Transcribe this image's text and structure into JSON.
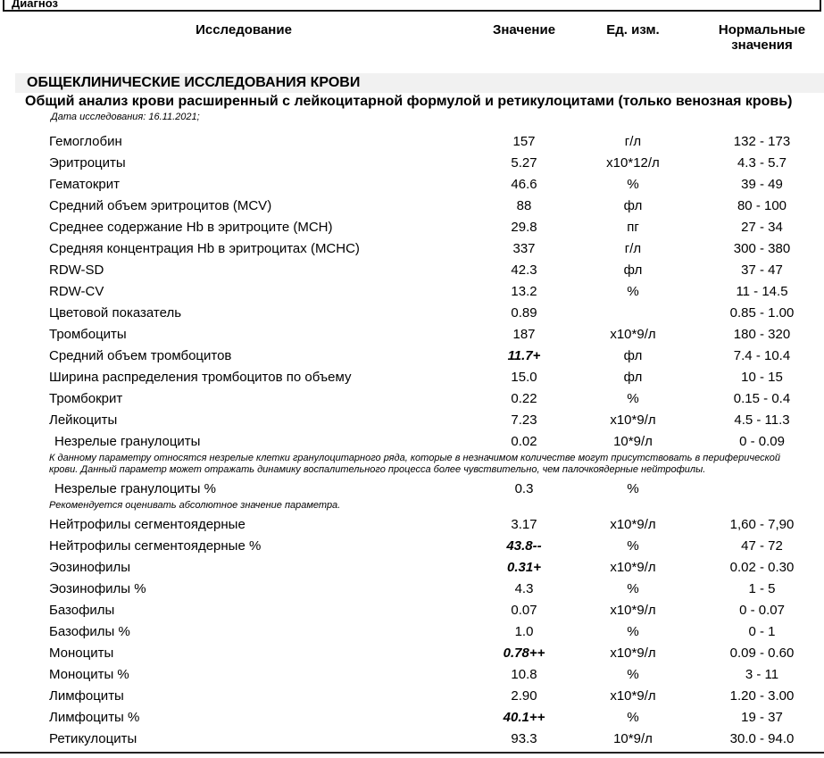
{
  "colors": {
    "section_header_bg": "#f1f1f1",
    "text": "#000000"
  },
  "document": {
    "diagnosis_box_label": "Диагноз",
    "columns": {
      "test": "Исследование",
      "value": "Значение",
      "unit": "Ед. изм.",
      "normal_line1": "Нормальные",
      "normal_line2": "значения"
    },
    "section_title": "ОБЩЕКЛИНИЧЕСКИЕ ИССЛЕДОВАНИЯ КРОВИ",
    "panel_title": "Общий анализ крови расширенный с лейкоцитарной формулой и ретикулоцитами (только венозная кровь)",
    "panel_date": "Дата исследования: 16.11.2021;",
    "rows": [
      {
        "type": "test",
        "name": "Гемоглобин",
        "value": "157",
        "unit": "г/л",
        "normal": "132 - 173",
        "flagged": false,
        "indent": false
      },
      {
        "type": "test",
        "name": "Эритроциты",
        "value": "5.27",
        "unit": "х10*12/л",
        "normal": "4.3 - 5.7",
        "flagged": false,
        "indent": false
      },
      {
        "type": "test",
        "name": "Гематокрит",
        "value": "46.6",
        "unit": "%",
        "normal": "39 - 49",
        "flagged": false,
        "indent": false
      },
      {
        "type": "test",
        "name": "Средний объем эритроцитов (MCV)",
        "value": "88",
        "unit": "фл",
        "normal": "80 - 100",
        "flagged": false,
        "indent": false
      },
      {
        "type": "test",
        "name": "Среднее содержание Hb в эритроците (MCH)",
        "value": "29.8",
        "unit": "пг",
        "normal": "27 - 34",
        "flagged": false,
        "indent": false
      },
      {
        "type": "test",
        "name": "Средняя концентрация Hb в эритроцитах (MCHC)",
        "value": "337",
        "unit": "г/л",
        "normal": "300 - 380",
        "flagged": false,
        "indent": false
      },
      {
        "type": "test",
        "name": "RDW-SD",
        "value": "42.3",
        "unit": "фл",
        "normal": "37 - 47",
        "flagged": false,
        "indent": false
      },
      {
        "type": "test",
        "name": "RDW-CV",
        "value": "13.2",
        "unit": "%",
        "normal": "11 - 14.5",
        "flagged": false,
        "indent": false
      },
      {
        "type": "test",
        "name": "Цветовой показатель",
        "value": "0.89",
        "unit": "",
        "normal": "0.85 - 1.00",
        "flagged": false,
        "indent": false
      },
      {
        "type": "test",
        "name": "Тромбоциты",
        "value": "187",
        "unit": "х10*9/л",
        "normal": "180 - 320",
        "flagged": false,
        "indent": false
      },
      {
        "type": "test",
        "name": "Средний объем тромбоцитов",
        "value": "11.7+",
        "unit": "фл",
        "normal": "7.4 - 10.4",
        "flagged": true,
        "indent": false
      },
      {
        "type": "test",
        "name": "Ширина распределения тромбоцитов по объему",
        "value": "15.0",
        "unit": "фл",
        "normal": "10 - 15",
        "flagged": false,
        "indent": false
      },
      {
        "type": "test",
        "name": "Тромбокрит",
        "value": "0.22",
        "unit": "%",
        "normal": "0.15 - 0.4",
        "flagged": false,
        "indent": false
      },
      {
        "type": "test",
        "name": "Лейкоциты",
        "value": "7.23",
        "unit": "х10*9/л",
        "normal": "4.5 - 11.3",
        "flagged": false,
        "indent": false
      },
      {
        "type": "test",
        "name": "Незрелые гранулоциты",
        "value": "0.02",
        "unit": "10*9/л",
        "normal": "0 - 0.09",
        "flagged": false,
        "indent": true
      },
      {
        "type": "note",
        "lines": [
          "К данному параметру относятся незрелые клетки гранулоцитарного ряда, которые  в незначимом количестве могут присутствовать в периферической",
          "крови. Данный параметр может отражать динамику воспалительного процесса более чувствительно, чем палочкоядерные нейтрофилы."
        ]
      },
      {
        "type": "test",
        "name": "Незрелые гранулоциты %",
        "value": "0.3",
        "unit": "%",
        "normal": "",
        "flagged": false,
        "indent": true
      },
      {
        "type": "note",
        "lines": [
          "Рекомендуется оценивать абсолютное значение параметра."
        ]
      },
      {
        "type": "test",
        "name": "Нейтрофилы сегментоядерные",
        "value": "3.17",
        "unit": "х10*9/л",
        "normal": "1,60 - 7,90",
        "flagged": false,
        "indent": false
      },
      {
        "type": "test",
        "name": "Нейтрофилы сегментоядерные %",
        "value": "43.8--",
        "unit": "%",
        "normal": "47 - 72",
        "flagged": true,
        "indent": false
      },
      {
        "type": "test",
        "name": "Эозинофилы",
        "value": "0.31+",
        "unit": "х10*9/л",
        "normal": "0.02 - 0.30",
        "flagged": true,
        "indent": false
      },
      {
        "type": "test",
        "name": "Эозинофилы %",
        "value": "4.3",
        "unit": "%",
        "normal": "1 - 5",
        "flagged": false,
        "indent": false
      },
      {
        "type": "test",
        "name": "Базофилы",
        "value": "0.07",
        "unit": "х10*9/л",
        "normal": "0 - 0.07",
        "flagged": false,
        "indent": false
      },
      {
        "type": "test",
        "name": "Базофилы %",
        "value": "1.0",
        "unit": "%",
        "normal": "0 - 1",
        "flagged": false,
        "indent": false
      },
      {
        "type": "test",
        "name": "Моноциты",
        "value": "0.78++",
        "unit": "х10*9/л",
        "normal": "0.09 - 0.60",
        "flagged": true,
        "indent": false
      },
      {
        "type": "test",
        "name": "Моноциты %",
        "value": "10.8",
        "unit": "%",
        "normal": "3 - 11",
        "flagged": false,
        "indent": false
      },
      {
        "type": "test",
        "name": "Лимфоциты",
        "value": "2.90",
        "unit": "х10*9/л",
        "normal": "1.20 - 3.00",
        "flagged": false,
        "indent": false
      },
      {
        "type": "test",
        "name": "Лимфоциты %",
        "value": "40.1++",
        "unit": "%",
        "normal": "19 - 37",
        "flagged": true,
        "indent": false
      },
      {
        "type": "test",
        "name": "Ретикулоциты",
        "value": "93.3",
        "unit": "10*9/л",
        "normal": "30.0 - 94.0",
        "flagged": false,
        "indent": false
      }
    ]
  }
}
